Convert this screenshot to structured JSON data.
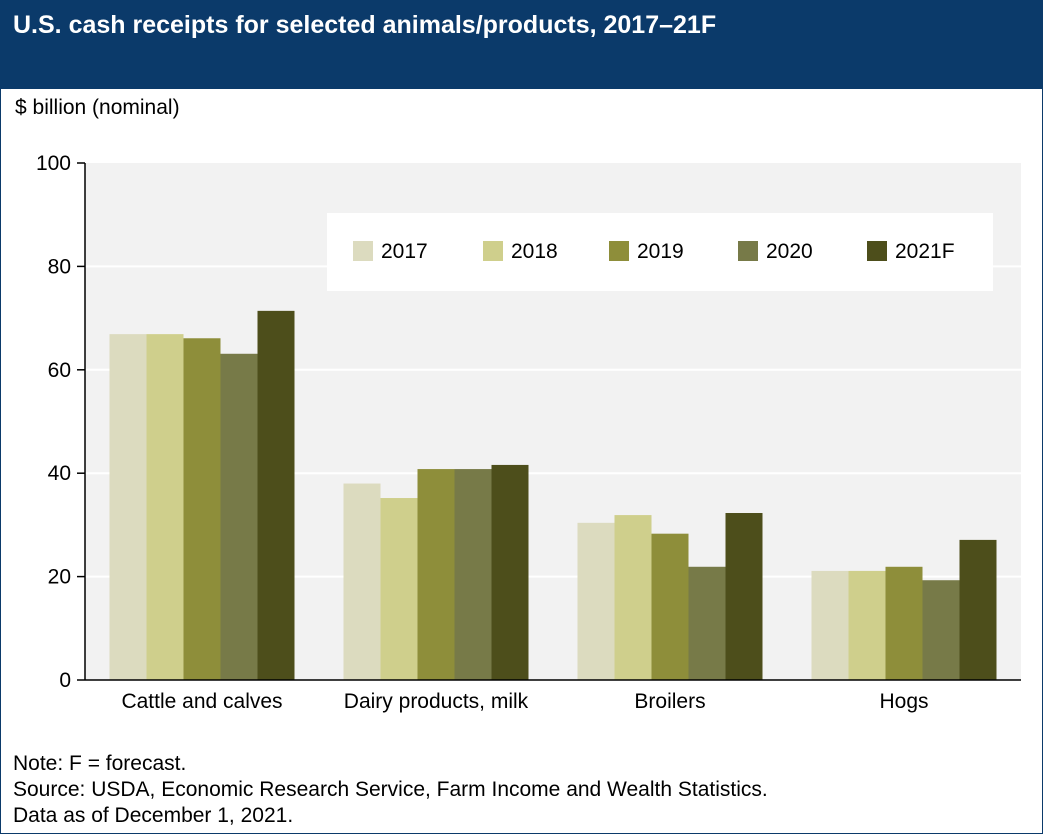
{
  "header": {
    "title": "U.S. cash receipts for selected animals/products, 2017–21F"
  },
  "chart_data": {
    "type": "bar",
    "title": "U.S. cash receipts for selected animals/products, 2017–21F",
    "ylabel": "$ billion (nominal)",
    "xlabel": "",
    "ylim": [
      0,
      100
    ],
    "yticks": [
      0,
      20,
      40,
      60,
      80,
      100
    ],
    "grid": true,
    "legend": "top-right",
    "categories": [
      "Cattle and calves",
      "Dairy products, milk",
      "Broilers",
      "Hogs"
    ],
    "series": [
      {
        "name": "2017",
        "color": "#dcdbbf",
        "values": [
          66.9,
          38.0,
          30.4,
          21.1
        ]
      },
      {
        "name": "2018",
        "color": "#cfcf8c",
        "values": [
          66.9,
          35.2,
          31.9,
          21.1
        ]
      },
      {
        "name": "2019",
        "color": "#8e8e3a",
        "values": [
          66.1,
          40.8,
          28.3,
          21.9
        ]
      },
      {
        "name": "2020",
        "color": "#777a48",
        "values": [
          63.1,
          40.8,
          21.9,
          19.3
        ]
      },
      {
        "name": "2021F",
        "color": "#4d4e1b",
        "values": [
          71.4,
          41.6,
          32.3,
          27.1
        ]
      }
    ]
  },
  "notes": {
    "note": "Note: F = forecast.",
    "source": "Source: USDA, Economic Research Service, Farm Income and Wealth Statistics.",
    "date": "Data as of December 1, 2021."
  },
  "colors": {
    "header": "#0b3a6a",
    "plot_bg": "#f2f2f2"
  }
}
